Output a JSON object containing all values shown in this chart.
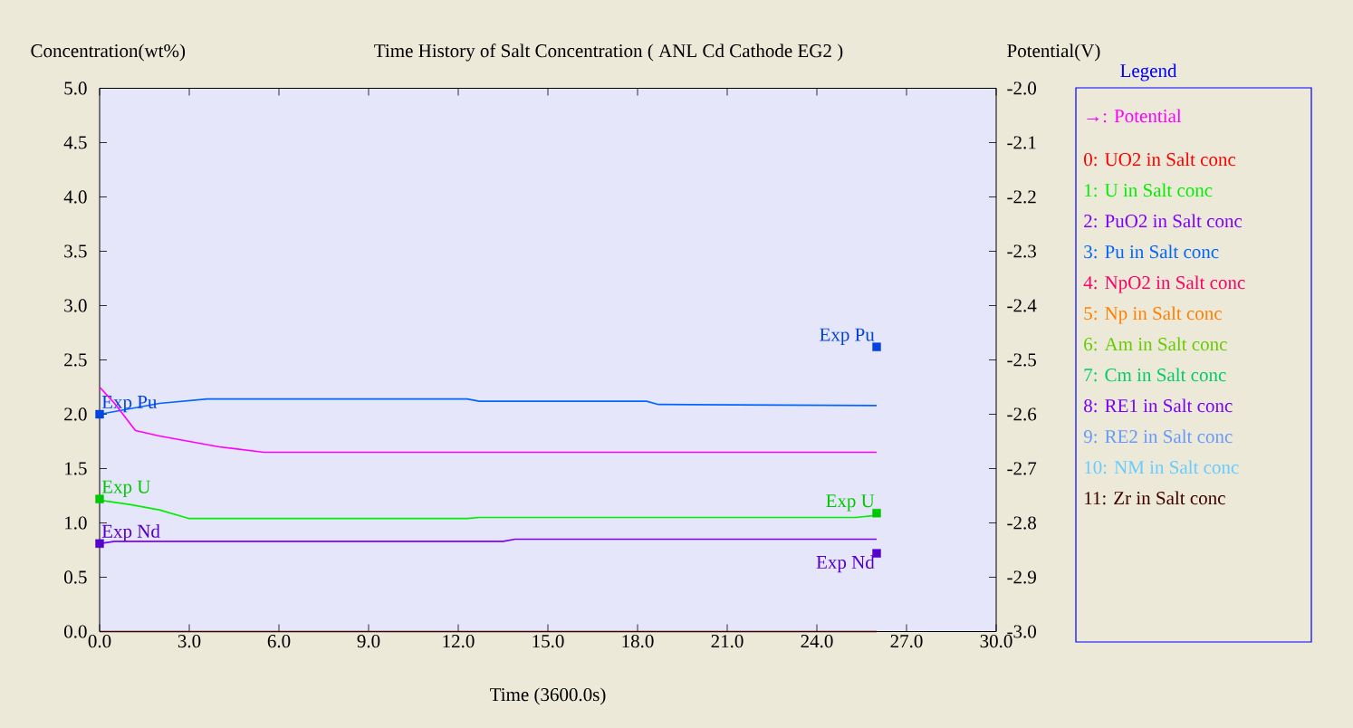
{
  "chart_data": {
    "type": "line",
    "title": "Time History of Salt Concentration ( ANL Cd Cathode EG2 )",
    "xlabel": "Time (3600.0s)",
    "ylabel": "Concentration(wt%)",
    "y2label": "Potential(V)",
    "legend_title": "Legend",
    "legend": "right",
    "xlim": [
      0,
      30
    ],
    "ylim": [
      0,
      5
    ],
    "y2lim": [
      -3,
      -2
    ],
    "xticks": [
      {
        "value": 0,
        "label": "0.0"
      },
      {
        "value": 3,
        "label": "3.0"
      },
      {
        "value": 6,
        "label": "6.0"
      },
      {
        "value": 9,
        "label": "9.0"
      },
      {
        "value": 12,
        "label": "12.0"
      },
      {
        "value": 15,
        "label": "15.0"
      },
      {
        "value": 18,
        "label": "18.0"
      },
      {
        "value": 21,
        "label": "21.0"
      },
      {
        "value": 24,
        "label": "24.0"
      },
      {
        "value": 27,
        "label": "27.0"
      },
      {
        "value": 30,
        "label": "30.0"
      }
    ],
    "yticks": [
      {
        "value": 0,
        "label": "0.0"
      },
      {
        "value": 0.5,
        "label": "0.5"
      },
      {
        "value": 1,
        "label": "1.0"
      },
      {
        "value": 1.5,
        "label": "1.5"
      },
      {
        "value": 2,
        "label": "2.0"
      },
      {
        "value": 2.5,
        "label": "2.5"
      },
      {
        "value": 3,
        "label": "3.0"
      },
      {
        "value": 3.5,
        "label": "3.5"
      },
      {
        "value": 4,
        "label": "4.0"
      },
      {
        "value": 4.5,
        "label": "4.5"
      },
      {
        "value": 5,
        "label": "5.0"
      }
    ],
    "y2ticks": [
      {
        "value": -3,
        "label": "-3.0"
      },
      {
        "value": -2.9,
        "label": "-2.9"
      },
      {
        "value": -2.8,
        "label": "-2.8"
      },
      {
        "value": -2.7,
        "label": "-2.7"
      },
      {
        "value": -2.6,
        "label": "-2.6"
      },
      {
        "value": -2.5,
        "label": "-2.5"
      },
      {
        "value": -2.4,
        "label": "-2.4"
      },
      {
        "value": -2.3,
        "label": "-2.3"
      },
      {
        "value": -2.2,
        "label": "-2.2"
      },
      {
        "value": -2.1,
        "label": "-2.1"
      },
      {
        "value": -2,
        "label": "-2.0"
      }
    ],
    "series": [
      {
        "name": "→: Potential",
        "color": "#ff00ff",
        "axis": "y2",
        "marker": "none",
        "x": [
          0,
          0.5,
          1.2,
          2,
          3,
          4,
          5.5,
          26
        ],
        "values": [
          -2.55,
          -2.58,
          -2.63,
          -2.64,
          -2.65,
          -2.66,
          -2.67,
          -2.67
        ]
      },
      {
        "name": "0:  UO2 in Salt conc",
        "color": "#ff0000",
        "marker": "none"
      },
      {
        "name": "1:  U in Salt conc",
        "color": "#00ee00",
        "marker": "none",
        "x": [
          0,
          1,
          2,
          3,
          12.3,
          12.7,
          25.3,
          26
        ],
        "values": [
          1.21,
          1.17,
          1.12,
          1.04,
          1.04,
          1.05,
          1.05,
          1.07
        ]
      },
      {
        "name": "2:  PuO2 in Salt conc",
        "color": "#8000ff",
        "marker": "none"
      },
      {
        "name": "3:  Pu in Salt conc",
        "color": "#0066ff",
        "marker": "none",
        "x": [
          0,
          1,
          2,
          3.6,
          12.3,
          12.7,
          18.3,
          18.7,
          26
        ],
        "values": [
          2.0,
          2.05,
          2.1,
          2.14,
          2.14,
          2.12,
          2.12,
          2.09,
          2.08
        ]
      },
      {
        "name": "4:  NpO2 in Salt conc",
        "color": "#ff0066",
        "marker": "none"
      },
      {
        "name": "5:  Np in Salt conc",
        "color": "#ff8000",
        "marker": "none"
      },
      {
        "name": "6:  Am in Salt conc",
        "color": "#66cc00",
        "marker": "none"
      },
      {
        "name": "7:  Cm in Salt conc",
        "color": "#00cc66",
        "marker": "none"
      },
      {
        "name": "8:  RE1 in Salt conc",
        "color": "#7a00ff",
        "marker": "none",
        "x": [
          0,
          0.5,
          13.5,
          13.9,
          26
        ],
        "values": [
          0.81,
          0.83,
          0.83,
          0.85,
          0.85
        ]
      },
      {
        "name": "9:  RE2 in Salt conc",
        "color": "#6699ff",
        "marker": "none"
      },
      {
        "name": "10: NM in Salt conc",
        "color": "#66ccff",
        "marker": "none"
      },
      {
        "name": "11: Zr in Salt conc",
        "color": "#400000",
        "marker": "none",
        "x": [
          0,
          26
        ],
        "values": [
          0,
          0
        ]
      },
      {
        "name": "Exp Pu",
        "type": "scatter",
        "color": "#0044dd",
        "marker": "square",
        "x": [
          0,
          26
        ],
        "values": [
          2.0,
          2.62
        ]
      },
      {
        "name": "Exp U",
        "type": "scatter",
        "color": "#00c800",
        "marker": "square",
        "x": [
          0,
          26
        ],
        "values": [
          1.22,
          1.09
        ]
      },
      {
        "name": "Exp Nd",
        "type": "scatter",
        "color": "#5500cc",
        "marker": "square",
        "x": [
          0,
          26
        ],
        "values": [
          0.81,
          0.72
        ]
      }
    ]
  }
}
